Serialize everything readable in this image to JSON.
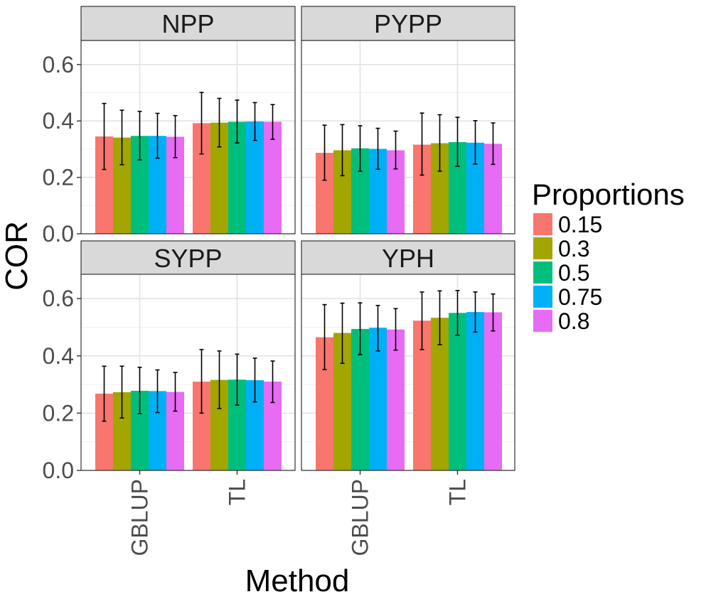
{
  "chart_data": {
    "type": "bar",
    "xlabel": "Method",
    "ylabel": "COR",
    "ylim": [
      0,
      0.66
    ],
    "y_ticks": [
      "0.0",
      "0.2",
      "0.4",
      "0.6"
    ],
    "y_tick_values": [
      0,
      0.2,
      0.4,
      0.6
    ],
    "categories": [
      "GBLUP",
      "TL"
    ],
    "legend": {
      "title": "Proportions",
      "placement": "right",
      "entries": [
        {
          "label": "0.15",
          "color": "#F8766D"
        },
        {
          "label": "0.3",
          "color": "#A3A500"
        },
        {
          "label": "0.5",
          "color": "#00BF7D"
        },
        {
          "label": "0.75",
          "color": "#00B0F6"
        },
        {
          "label": "0.8",
          "color": "#E76BF3"
        }
      ]
    },
    "grid": true,
    "error_bars": true,
    "facets": [
      {
        "name": "NPP",
        "series": [
          {
            "name": "0.15",
            "values": [
              0.345,
              0.392
            ],
            "lower": [
              0.228,
              0.283
            ],
            "upper": [
              0.462,
              0.501
            ]
          },
          {
            "name": "0.3",
            "values": [
              0.341,
              0.394
            ],
            "lower": [
              0.245,
              0.308
            ],
            "upper": [
              0.438,
              0.48
            ]
          },
          {
            "name": "0.5",
            "values": [
              0.347,
              0.397
            ],
            "lower": [
              0.262,
              0.322
            ],
            "upper": [
              0.434,
              0.474
            ]
          },
          {
            "name": "0.75",
            "values": [
              0.347,
              0.398
            ],
            "lower": [
              0.268,
              0.331
            ],
            "upper": [
              0.427,
              0.465
            ]
          },
          {
            "name": "0.8",
            "values": [
              0.344,
              0.397
            ],
            "lower": [
              0.27,
              0.335
            ],
            "upper": [
              0.419,
              0.458
            ]
          }
        ]
      },
      {
        "name": "PYPP",
        "series": [
          {
            "name": "0.15",
            "values": [
              0.287,
              0.316
            ],
            "lower": [
              0.19,
              0.208
            ],
            "upper": [
              0.385,
              0.428
            ]
          },
          {
            "name": "0.3",
            "values": [
              0.296,
              0.321
            ],
            "lower": [
              0.206,
              0.222
            ],
            "upper": [
              0.387,
              0.422
            ]
          },
          {
            "name": "0.5",
            "values": [
              0.303,
              0.325
            ],
            "lower": [
              0.222,
              0.239
            ],
            "upper": [
              0.383,
              0.413
            ]
          },
          {
            "name": "0.75",
            "values": [
              0.301,
              0.323
            ],
            "lower": [
              0.229,
              0.247
            ],
            "upper": [
              0.374,
              0.401
            ]
          },
          {
            "name": "0.8",
            "values": [
              0.296,
              0.319
            ],
            "lower": [
              0.23,
              0.246
            ],
            "upper": [
              0.364,
              0.393
            ]
          }
        ]
      },
      {
        "name": "SYPP",
        "series": [
          {
            "name": "0.15",
            "values": [
              0.268,
              0.31
            ],
            "lower": [
              0.172,
              0.2
            ],
            "upper": [
              0.364,
              0.422
            ]
          },
          {
            "name": "0.3",
            "values": [
              0.273,
              0.316
            ],
            "lower": [
              0.183,
              0.216
            ],
            "upper": [
              0.364,
              0.417
            ]
          },
          {
            "name": "0.5",
            "values": [
              0.278,
              0.317
            ],
            "lower": [
              0.198,
              0.228
            ],
            "upper": [
              0.36,
              0.406
            ]
          },
          {
            "name": "0.75",
            "values": [
              0.277,
              0.315
            ],
            "lower": [
              0.202,
              0.239
            ],
            "upper": [
              0.351,
              0.392
            ]
          },
          {
            "name": "0.8",
            "values": [
              0.274,
              0.31
            ],
            "lower": [
              0.207,
              0.237
            ],
            "upper": [
              0.342,
              0.382
            ]
          }
        ]
      },
      {
        "name": "YPH",
        "series": [
          {
            "name": "0.15",
            "values": [
              0.465,
              0.523
            ],
            "lower": [
              0.352,
              0.422
            ],
            "upper": [
              0.579,
              0.623
            ]
          },
          {
            "name": "0.3",
            "values": [
              0.48,
              0.533
            ],
            "lower": [
              0.374,
              0.439
            ],
            "upper": [
              0.584,
              0.627
            ]
          },
          {
            "name": "0.5",
            "values": [
              0.494,
              0.55
            ],
            "lower": [
              0.404,
              0.472
            ],
            "upper": [
              0.585,
              0.628
            ]
          },
          {
            "name": "0.75",
            "values": [
              0.498,
              0.553
            ],
            "lower": [
              0.417,
              0.483
            ],
            "upper": [
              0.576,
              0.623
            ]
          },
          {
            "name": "0.8",
            "values": [
              0.492,
              0.552
            ],
            "lower": [
              0.42,
              0.487
            ],
            "upper": [
              0.565,
              0.616
            ]
          }
        ]
      }
    ]
  }
}
